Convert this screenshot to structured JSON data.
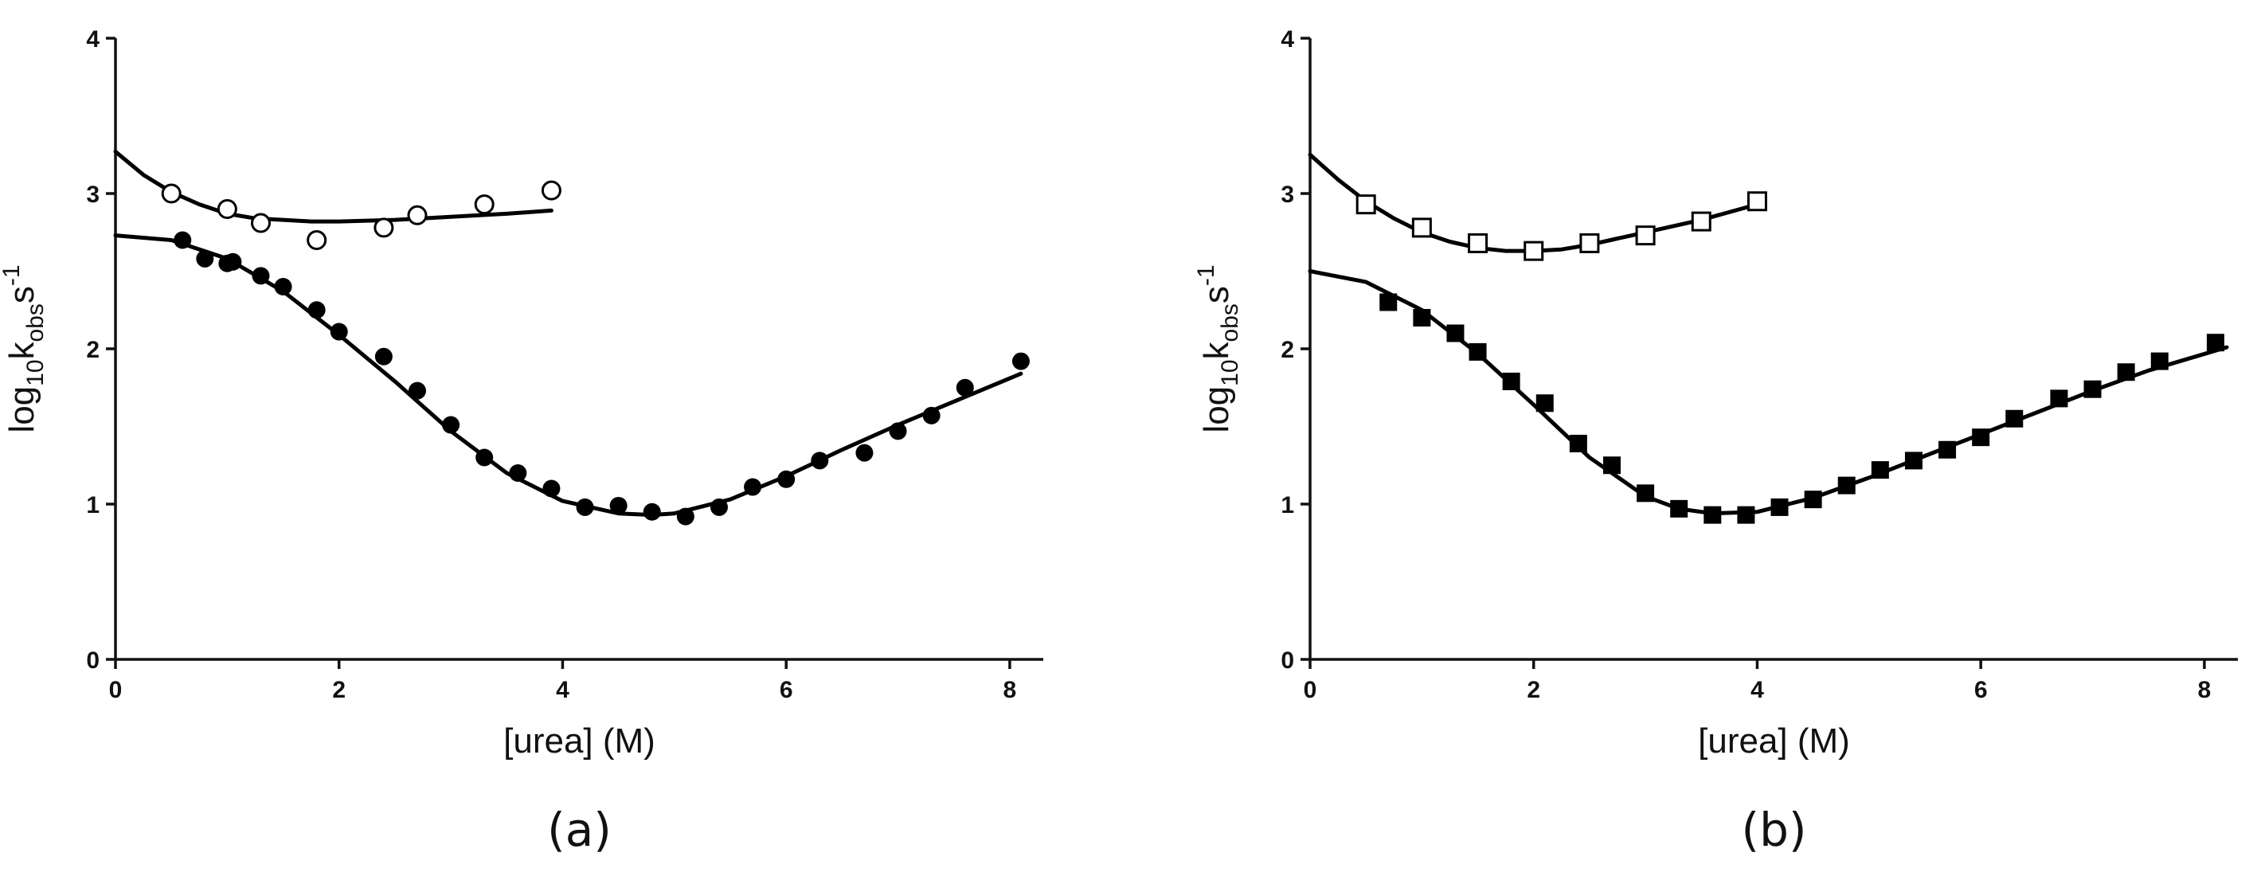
{
  "chart_data": [
    {
      "type": "scatter",
      "panel_label": "(a)",
      "title": "",
      "xlabel": "[urea] (M)",
      "ylabel_parts": {
        "base": "log",
        "sub1": "10",
        "k": "k",
        "sub2": "obs",
        "s": "s",
        "sup": "-1"
      },
      "xlim": [
        0,
        8.3
      ],
      "ylim": [
        0,
        4
      ],
      "xticks": [
        0,
        2,
        4,
        6,
        8
      ],
      "yticks": [
        0,
        1,
        2,
        3,
        4
      ],
      "grid": false,
      "series": [
        {
          "marker": "open-circle",
          "x": [
            0.5,
            1.0,
            1.3,
            1.8,
            2.4,
            2.7,
            3.3,
            3.9
          ],
          "y": [
            3.0,
            2.9,
            2.81,
            2.7,
            2.78,
            2.86,
            2.93,
            3.02
          ]
        },
        {
          "marker": "filled-circle",
          "x": [
            0.6,
            0.8,
            1.0,
            1.05,
            1.3,
            1.5,
            1.8,
            2.0,
            2.4,
            2.7,
            3.0,
            3.3,
            3.6,
            3.9,
            4.2,
            4.5,
            4.8,
            5.1,
            5.4,
            5.7,
            6.0,
            6.3,
            6.7,
            7.0,
            7.3,
            7.6,
            8.1
          ],
          "y": [
            2.7,
            2.58,
            2.55,
            2.56,
            2.47,
            2.4,
            2.25,
            2.11,
            1.95,
            1.73,
            1.51,
            1.3,
            1.2,
            1.1,
            0.98,
            0.99,
            0.95,
            0.92,
            0.98,
            1.11,
            1.16,
            1.28,
            1.33,
            1.47,
            1.57,
            1.75,
            1.92
          ]
        }
      ],
      "fits": [
        {
          "x": [
            0,
            0.25,
            0.5,
            0.75,
            1.0,
            1.25,
            1.5,
            1.75,
            2.0,
            2.5,
            3.0,
            3.5,
            3.9
          ],
          "y": [
            3.27,
            3.12,
            3.01,
            2.93,
            2.87,
            2.84,
            2.83,
            2.82,
            2.82,
            2.83,
            2.85,
            2.87,
            2.89
          ]
        },
        {
          "x": [
            0,
            0.5,
            1.0,
            1.5,
            2.0,
            2.5,
            3.0,
            3.5,
            4.0,
            4.5,
            4.8,
            5.0,
            5.5,
            6.0,
            6.5,
            7.0,
            7.5,
            8.1
          ],
          "y": [
            2.73,
            2.7,
            2.58,
            2.37,
            2.09,
            1.79,
            1.47,
            1.2,
            1.02,
            0.94,
            0.93,
            0.94,
            1.03,
            1.18,
            1.35,
            1.51,
            1.66,
            1.84
          ]
        }
      ]
    },
    {
      "type": "scatter",
      "panel_label": "(b)",
      "title": "",
      "xlabel": "[urea] (M)",
      "ylabel_parts": {
        "base": "log",
        "sub1": "10",
        "k": "k",
        "sub2": "obs",
        "s": "s",
        "sup": "-1"
      },
      "xlim": [
        0,
        8.3
      ],
      "ylim": [
        0,
        4
      ],
      "xticks": [
        0,
        2,
        4,
        6,
        8
      ],
      "yticks": [
        0,
        1,
        2,
        3,
        4
      ],
      "grid": false,
      "series": [
        {
          "marker": "open-square",
          "x": [
            0.5,
            1.0,
            1.5,
            2.0,
            2.5,
            3.0,
            3.5,
            4.0
          ],
          "y": [
            2.93,
            2.78,
            2.68,
            2.63,
            2.68,
            2.73,
            2.82,
            2.95
          ]
        },
        {
          "marker": "filled-square",
          "x": [
            0.7,
            1.0,
            1.3,
            1.5,
            1.8,
            2.1,
            2.4,
            2.7,
            3.0,
            3.3,
            3.6,
            3.9,
            4.2,
            4.5,
            4.8,
            5.1,
            5.4,
            5.7,
            6.0,
            6.3,
            6.7,
            7.0,
            7.3,
            7.6,
            8.1
          ],
          "y": [
            2.3,
            2.2,
            2.1,
            1.98,
            1.79,
            1.65,
            1.39,
            1.25,
            1.07,
            0.97,
            0.93,
            0.93,
            0.98,
            1.03,
            1.12,
            1.22,
            1.28,
            1.35,
            1.43,
            1.55,
            1.68,
            1.74,
            1.85,
            1.92,
            2.04
          ]
        }
      ],
      "fits": [
        {
          "x": [
            0,
            0.25,
            0.5,
            0.75,
            1.0,
            1.25,
            1.5,
            1.75,
            2.0,
            2.25,
            2.5,
            2.75,
            3.0,
            3.5,
            4.0
          ],
          "y": [
            3.25,
            3.09,
            2.95,
            2.84,
            2.75,
            2.69,
            2.65,
            2.63,
            2.63,
            2.64,
            2.67,
            2.71,
            2.75,
            2.83,
            2.93
          ]
        },
        {
          "x": [
            0,
            0.5,
            1.0,
            1.5,
            2.0,
            2.5,
            3.0,
            3.3,
            3.6,
            4.0,
            4.5,
            5.0,
            5.5,
            6.0,
            6.5,
            7.0,
            7.5,
            8.2
          ],
          "y": [
            2.5,
            2.43,
            2.25,
            1.97,
            1.64,
            1.3,
            1.05,
            0.97,
            0.94,
            0.95,
            1.04,
            1.17,
            1.31,
            1.45,
            1.59,
            1.73,
            1.86,
            2.01
          ]
        }
      ]
    }
  ]
}
